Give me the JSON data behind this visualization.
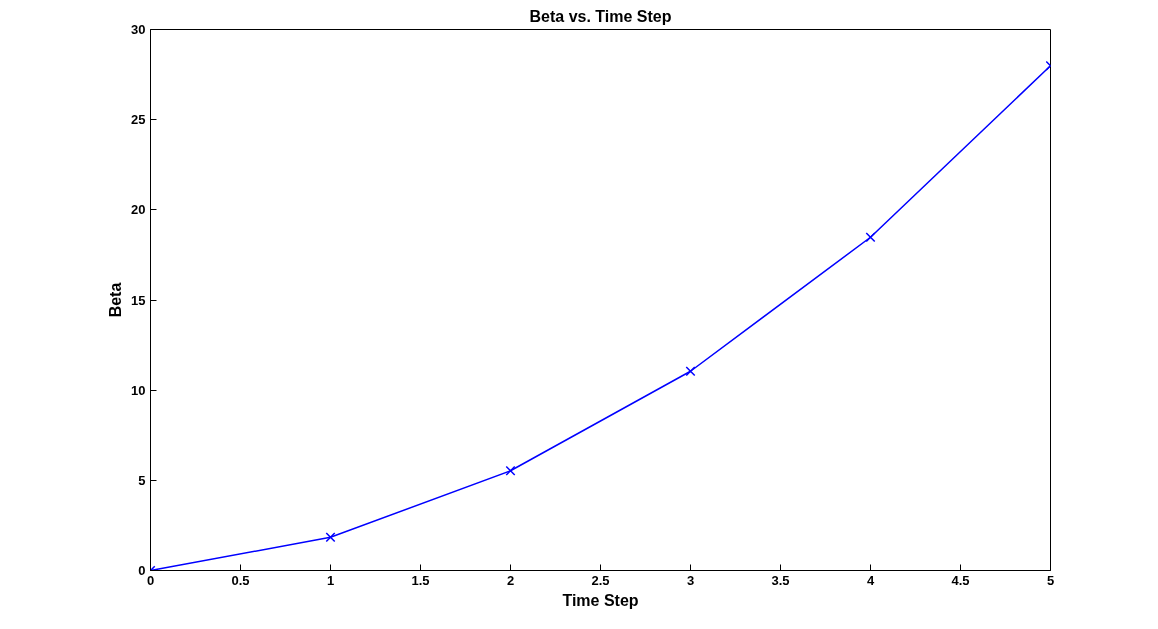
{
  "chart_data": {
    "type": "line",
    "title": "Beta vs. Time Step",
    "xlabel": "Time Step",
    "ylabel": "Beta",
    "x": [
      0,
      1,
      2,
      3,
      4,
      5
    ],
    "series": [
      {
        "color": "#0000ff",
        "values": [
          0,
          1.84,
          5.53,
          11.05,
          18.48,
          27.99
        ]
      }
    ],
    "xlim": [
      0,
      5
    ],
    "ylim": [
      0,
      30
    ],
    "xticks": [
      0,
      0.5,
      1,
      1.5,
      2,
      2.5,
      3,
      3.5,
      4,
      4.5,
      5
    ],
    "yticks": [
      0,
      5,
      10,
      15,
      20,
      25,
      30
    ],
    "marker": "cross",
    "line_style": "solid",
    "grid": false
  }
}
